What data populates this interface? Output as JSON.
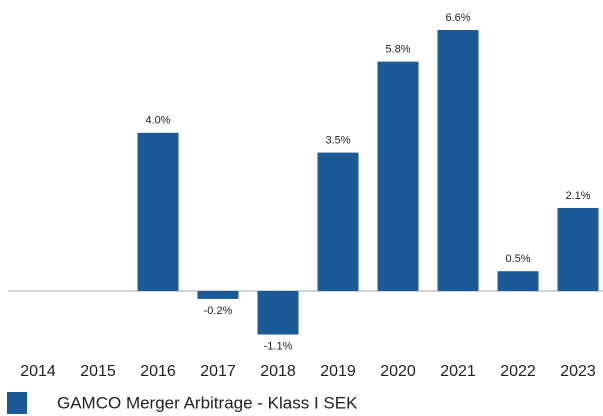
{
  "chart_data": {
    "type": "bar",
    "categories": [
      "2014",
      "2015",
      "2016",
      "2017",
      "2018",
      "2019",
      "2020",
      "2021",
      "2022",
      "2023"
    ],
    "series": [
      {
        "name": "GAMCO Merger Arbitrage - Klass I SEK",
        "color": "#1b5a96",
        "values": [
          null,
          null,
          4.0,
          -0.2,
          -1.1,
          3.5,
          5.8,
          6.6,
          0.5,
          2.1
        ],
        "value_labels": [
          null,
          null,
          "4.0%",
          "-0.2%",
          "-1.1%",
          "3.5%",
          "5.8%",
          "6.6%",
          "0.5%",
          "2.1%"
        ]
      }
    ]
  }
}
